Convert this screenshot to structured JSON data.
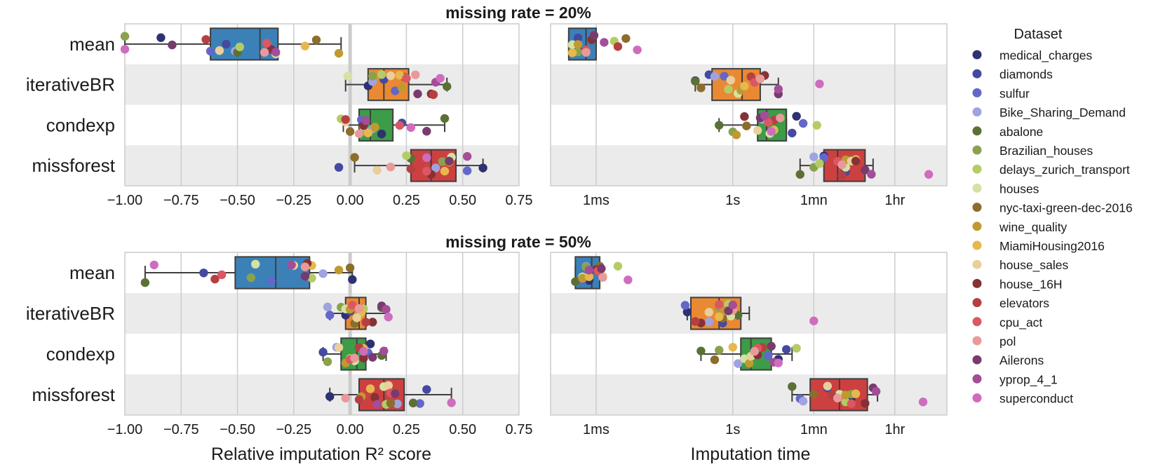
{
  "colors": {
    "axes_border": "#cccccc",
    "grid": "#cccccc",
    "band": "#ebebeb",
    "zero_line": "#cccccc",
    "box_edge": "#3f3f3f",
    "methods": {
      "mean": "#3b81b8",
      "iterativeBR": "#ea8933",
      "condexp": "#3d9c47",
      "missforest": "#cc4040"
    }
  },
  "legend": {
    "title": "Dataset",
    "placement": "right",
    "entries": [
      {
        "label": "medical_charges",
        "color": "#2e3172"
      },
      {
        "label": "diamonds",
        "color": "#4549a0"
      },
      {
        "label": "sulfur",
        "color": "#6267c9"
      },
      {
        "label": "Bike_Sharing_Demand",
        "color": "#9fa3e0"
      },
      {
        "label": "abalone",
        "color": "#5b7035"
      },
      {
        "label": "Brazilian_houses",
        "color": "#8aa24d"
      },
      {
        "label": "delays_zurich_transport",
        "color": "#b4cc66"
      },
      {
        "label": "houses",
        "color": "#d4e2a3"
      },
      {
        "label": "nyc-taxi-green-dec-2016",
        "color": "#8c6d2c"
      },
      {
        "label": "wine_quality",
        "color": "#c09a30"
      },
      {
        "label": "MiamiHousing2016",
        "color": "#e6b84d"
      },
      {
        "label": "house_sales",
        "color": "#e9cf9a"
      },
      {
        "label": "house_16H",
        "color": "#853237"
      },
      {
        "label": "elevators",
        "color": "#b63f42"
      },
      {
        "label": "cpu_act",
        "color": "#da5763"
      },
      {
        "label": "pol",
        "color": "#e89a9a"
      },
      {
        "label": "Ailerons",
        "color": "#793a6e"
      },
      {
        "label": "yprop_4_1",
        "color": "#a44d98"
      },
      {
        "label": "superconduct",
        "color": "#ce6dbe"
      }
    ]
  },
  "chart_data": [
    {
      "type": "box",
      "panel": "r2_20",
      "title": "missing rate = 20%",
      "xlabel": "",
      "xlim": [
        -1.0,
        0.75
      ],
      "xticks": [
        -1.0,
        -0.75,
        -0.5,
        -0.25,
        0.0,
        0.25,
        0.5,
        0.75
      ],
      "xtick_labels": [
        "−1.00",
        "−0.75",
        "−0.50",
        "−0.25",
        "0.00",
        "0.25",
        "0.50",
        "0.75"
      ],
      "categories": [
        "mean",
        "iterativeBR",
        "condexp",
        "missforest"
      ],
      "boxes": [
        {
          "method": "mean",
          "whislo": -1.0,
          "q1": -0.62,
          "med": -0.4,
          "q3": -0.32,
          "whishi": -0.04
        },
        {
          "method": "iterativeBR",
          "whislo": -0.02,
          "q1": 0.08,
          "med": 0.15,
          "q3": 0.26,
          "whishi": 0.43
        },
        {
          "method": "condexp",
          "whislo": -0.03,
          "q1": 0.04,
          "med": 0.09,
          "q3": 0.19,
          "whishi": 0.42
        },
        {
          "method": "missforest",
          "whislo": 0.02,
          "q1": 0.27,
          "med": 0.36,
          "q3": 0.47,
          "whishi": 0.59
        }
      ],
      "points": {
        "mean": [
          -0.84,
          -0.55,
          -0.62,
          -0.51,
          -0.5,
          -1.0,
          -0.49,
          -0.33,
          -0.15,
          -0.05,
          -0.2,
          -0.58,
          -0.35,
          -0.64,
          -0.37,
          -0.38,
          -0.79,
          -0.33,
          -1.0
        ],
        "iterativeBR": [
          0.08,
          0.15,
          0.2,
          0.1,
          0.43,
          0.1,
          0.14,
          -0.01,
          0.24,
          0.23,
          0.22,
          0.18,
          0.36,
          0.37,
          0.25,
          0.29,
          0.3,
          0.38,
          0.4
        ],
        "condexp": [
          0.14,
          0.23,
          0.05,
          0.1,
          0.42,
          0.07,
          -0.04,
          0.06,
          0.0,
          0.11,
          0.08,
          -0.02,
          0.06,
          -0.02,
          0.22,
          0.04,
          0.34,
          0.07,
          0.27
        ],
        "missforest": [
          0.59,
          -0.05,
          0.52,
          0.38,
          0.27,
          0.41,
          0.25,
          0.45,
          0.02,
          0.44,
          0.42,
          0.12,
          0.36,
          0.27,
          0.34,
          0.18,
          0.44,
          0.52,
          0.34
        ]
      }
    },
    {
      "type": "box",
      "panel": "time_20",
      "title": "",
      "xlabel": "",
      "scale": "log",
      "xlim_seconds": [
        0.0001,
        50000
      ],
      "xticks_seconds": [
        0.001,
        1,
        60,
        3600
      ],
      "xtick_labels": [
        "1ms",
        "1s",
        "1mn",
        "1hr"
      ],
      "categories": [
        "mean",
        "iterativeBR",
        "condexp",
        "missforest"
      ],
      "boxes": [
        {
          "method": "mean",
          "whislo": 0.00025,
          "q1": 0.00025,
          "med": 0.0006,
          "q3": 0.001,
          "whishi": 0.001
        },
        {
          "method": "iterativeBR",
          "whislo": 0.15,
          "q1": 0.35,
          "med": 1.6,
          "q3": 4.0,
          "whishi": 10
        },
        {
          "method": "condexp",
          "whislo": 0.5,
          "q1": 3.5,
          "med": 5.5,
          "q3": 15,
          "whishi": 15
        },
        {
          "method": "missforest",
          "whislo": 30,
          "q1": 100,
          "med": 200,
          "q3": 800,
          "whishi": 1200
        }
      ],
      "points": {
        "mean": [
          0.0004,
          0.0004,
          0.0003,
          0.0006,
          0.0003,
          0.0004,
          0.0025,
          0.0003,
          0.0045,
          0.0004,
          0.0003,
          0.0006,
          0.0008,
          0.003,
          0.0006,
          0.0006,
          0.0009,
          0.0015,
          0.008
        ],
        "iterativeBR": [
          0.15,
          0.3,
          0.65,
          0.4,
          0.15,
          1.5,
          0.8,
          1.3,
          0.2,
          1.5,
          1.8,
          0.9,
          5.0,
          2.5,
          3.0,
          4.0,
          10,
          10,
          80
        ],
        "condexp": [
          25,
          20,
          35,
          4.5,
          0.5,
          1.0,
          70,
          6.5,
          2.0,
          1.2,
          8,
          3.5,
          1.8,
          8,
          6,
          11,
          4,
          5,
          7
        ],
        "missforest": [
          100,
          300,
          100,
          60,
          30,
          60,
          80,
          300,
          350,
          300,
          500,
          400,
          500,
          250,
          200,
          250,
          800,
          1100,
          20000
        ]
      }
    },
    {
      "type": "box",
      "panel": "r2_50",
      "title": "missing rate = 50%",
      "xlabel": "Relative imputation R² score",
      "xlim": [
        -1.0,
        0.75
      ],
      "xticks": [
        -1.0,
        -0.75,
        -0.5,
        -0.25,
        0.0,
        0.25,
        0.5,
        0.75
      ],
      "xtick_labels": [
        "−1.00",
        "−0.75",
        "−0.50",
        "−0.25",
        "0.00",
        "0.25",
        "0.50",
        "0.75"
      ],
      "categories": [
        "mean",
        "iterativeBR",
        "condexp",
        "missforest"
      ],
      "boxes": [
        {
          "method": "mean",
          "whislo": -0.91,
          "q1": -0.51,
          "med": -0.33,
          "q3": -0.18,
          "whishi": 0.01
        },
        {
          "method": "iterativeBR",
          "whislo": -0.09,
          "q1": -0.02,
          "med": 0.04,
          "q3": 0.07,
          "whishi": 0.17
        },
        {
          "method": "condexp",
          "whislo": -0.12,
          "q1": -0.04,
          "med": 0.03,
          "q3": 0.07,
          "whishi": 0.16
        },
        {
          "method": "missforest",
          "whislo": -0.09,
          "q1": 0.04,
          "med": 0.15,
          "q3": 0.24,
          "whishi": 0.45
        }
      ],
      "points": {
        "mean": [
          0.01,
          -0.65,
          -0.35,
          -0.12,
          -0.91,
          -0.44,
          -0.17,
          -0.42,
          0.0,
          -0.05,
          -0.17,
          -0.25,
          -0.19,
          -0.6,
          -0.57,
          -0.2,
          -0.2,
          -0.26,
          -0.87
        ],
        "iterativeBR": [
          -0.02,
          0.0,
          -0.09,
          -0.1,
          0.14,
          -0.04,
          0.06,
          -0.02,
          0.02,
          0.0,
          0.05,
          0.03,
          0.1,
          0.07,
          0.01,
          0.04,
          0.14,
          0.16,
          0.17
        ],
        "condexp": [
          0.09,
          -0.12,
          0.08,
          -0.06,
          0.14,
          -0.1,
          0.0,
          0.02,
          0.04,
          -0.02,
          0.06,
          -0.05,
          0.06,
          0.04,
          0.0,
          0.02,
          0.1,
          0.15,
          0.06
        ],
        "missforest": [
          -0.09,
          0.34,
          0.31,
          0.21,
          0.28,
          0.2,
          0.16,
          0.15,
          0.18,
          0.05,
          0.09,
          0.17,
          0.11,
          0.04,
          0.18,
          -0.02,
          0.2,
          0.12,
          0.45
        ]
      }
    },
    {
      "type": "box",
      "panel": "time_50",
      "title": "",
      "xlabel": "Imputation time",
      "scale": "log",
      "xlim_seconds": [
        0.0001,
        50000
      ],
      "xticks_seconds": [
        0.001,
        1,
        60,
        3600
      ],
      "xtick_labels": [
        "1ms",
        "1s",
        "1mn",
        "1hr"
      ],
      "categories": [
        "mean",
        "iterativeBR",
        "condexp",
        "missforest"
      ],
      "boxes": [
        {
          "method": "mean",
          "whislo": 0.00035,
          "q1": 0.00035,
          "med": 0.0008,
          "q3": 0.0012,
          "whishi": 0.0012
        },
        {
          "method": "iterativeBR",
          "whislo": 0.1,
          "q1": 0.12,
          "med": 0.5,
          "q3": 1.5,
          "whishi": 2.3
        },
        {
          "method": "condexp",
          "whislo": 0.2,
          "q1": 1.5,
          "med": 2.5,
          "q3": 7,
          "whishi": 20
        },
        {
          "method": "missforest",
          "whislo": 20,
          "q1": 50,
          "med": 220,
          "q3": 900,
          "whishi": 1500
        }
      ],
      "points": {
        "mean": [
          0.0007,
          0.0005,
          0.0005,
          0.0006,
          0.00035,
          0.0006,
          0.003,
          0.0005,
          0.0012,
          0.0005,
          0.0007,
          0.0014,
          0.001,
          0.0012,
          0.0011,
          0.0014,
          0.0013,
          0.0007,
          0.005
        ],
        "iterativeBR": [
          0.1,
          0.6,
          0.09,
          0.3,
          1.3,
          0.5,
          0.8,
          0.9,
          0.6,
          0.6,
          0.5,
          0.3,
          0.2,
          0.15,
          0.5,
          1.0,
          0.8,
          1.0,
          60
        ],
        "condexp": [
          10,
          15,
          6,
          1.3,
          0.2,
          0.5,
          25,
          1.8,
          0.4,
          2.3,
          1.0,
          2.5,
          3.5,
          4.5,
          3.5,
          3.0,
          7,
          8,
          10
        ],
        "missforest": [
          400,
          120,
          30,
          35,
          20,
          400,
          300,
          220,
          60,
          300,
          500,
          120,
          800,
          150,
          400,
          200,
          1200,
          1400,
          15000
        ]
      }
    }
  ]
}
